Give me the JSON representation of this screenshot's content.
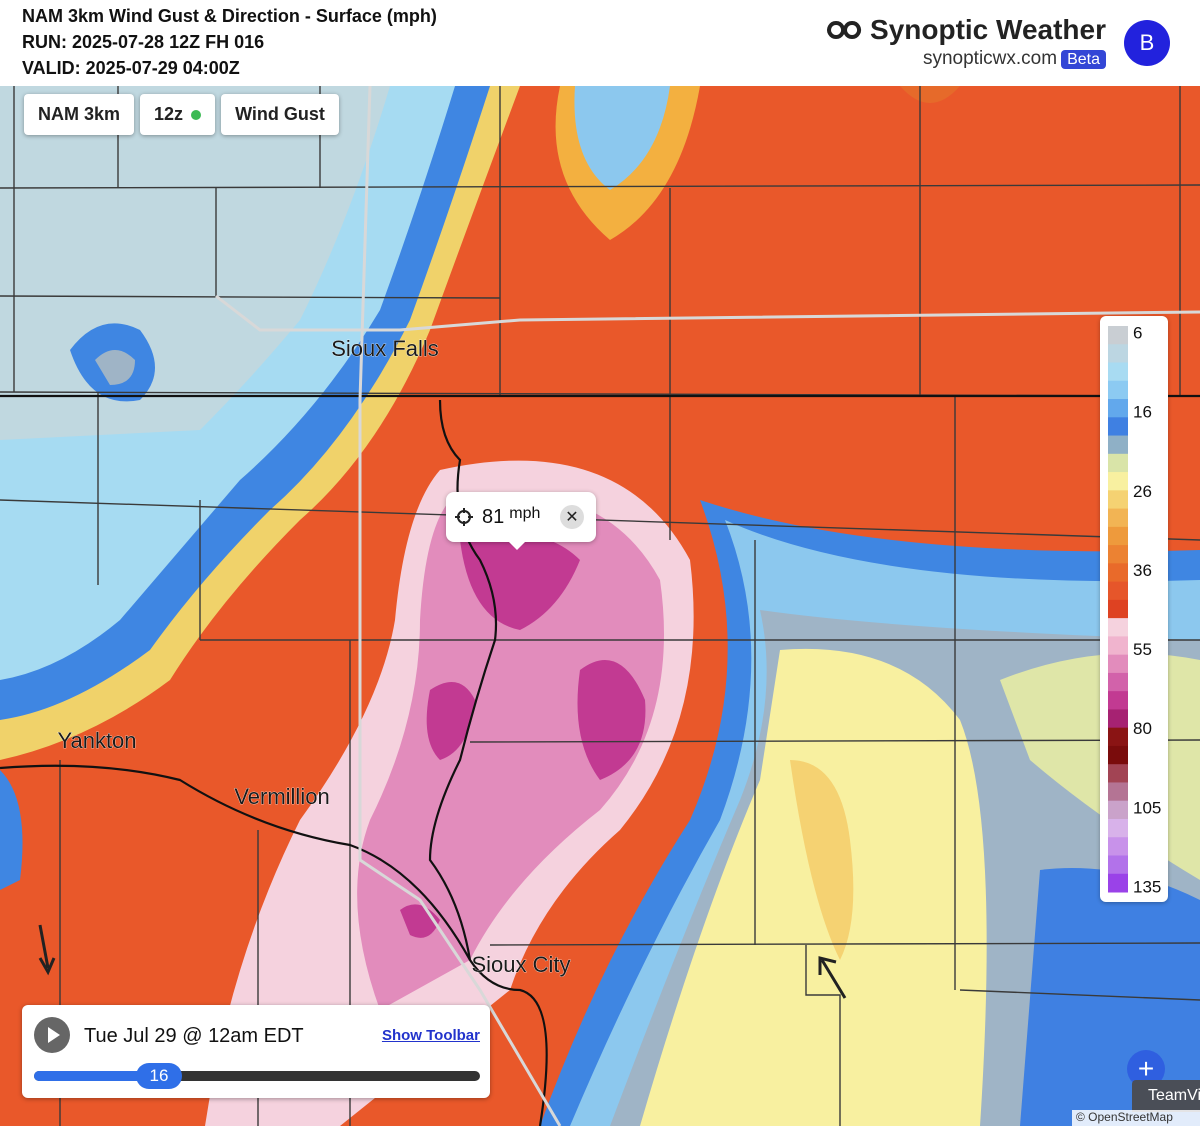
{
  "header": {
    "title": "NAM 3km Wind Gust & Direction - Surface (mph)",
    "run": "RUN: 2025-07-28 12Z FH 016",
    "valid": "VALID: 2025-07-29 04:00Z"
  },
  "brand": {
    "name": "Synoptic Weather",
    "url": "synopticwx.com",
    "badge": "Beta",
    "avatar": "B"
  },
  "controls": [
    "NAM 3km",
    "12z",
    "Wind Gust"
  ],
  "cities": [
    "Sioux Falls",
    "Yankton",
    "Vermillion",
    "Sioux City"
  ],
  "popup": {
    "value": 81,
    "unit": "mph"
  },
  "legend": {
    "labels": [
      6,
      16,
      26,
      36,
      55,
      80,
      105,
      135
    ],
    "colors": [
      "#c9ced3",
      "#bcd6e2",
      "#a8dbf2",
      "#8ccaf2",
      "#62a8ec",
      "#3f80e2",
      "#8fb0c6",
      "#d9e4a8",
      "#f8f0a0",
      "#f5d272",
      "#f2b454",
      "#ee9a3c",
      "#ec8232",
      "#e96a2a",
      "#e6562a",
      "#de4222",
      "#f5d2de",
      "#f0b4ce",
      "#e28cbc",
      "#d262aa",
      "#c23a92",
      "#a62272",
      "#8a1414",
      "#7a0c0c",
      "#a24454",
      "#b47494",
      "#caa2ca",
      "#d8b2ea",
      "#c892ea",
      "#b272ea",
      "#9a42e8"
    ]
  },
  "playback": {
    "time": "Tue Jul 29 @ 12am EDT",
    "toolbar_link": "Show Toolbar",
    "forecast_hour": 16
  },
  "overlay": {
    "tab": "TeamVi",
    "attribution": "© OpenStreetMap"
  }
}
